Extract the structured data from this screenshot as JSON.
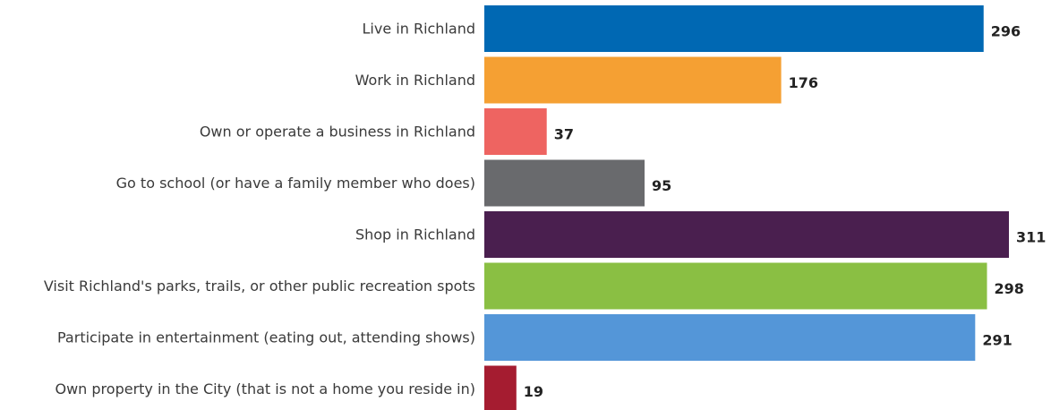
{
  "chart_data": {
    "type": "bar",
    "orientation": "horizontal",
    "categories": [
      "Live in Richland",
      "Work in Richland",
      "Own or operate a business in Richland",
      "Go to school (or have a family member who does)",
      "Shop in Richland",
      "Visit Richland's parks, trails, or other public recreation spots",
      "Participate in entertainment (eating out, attending shows)",
      "Own property in the City (that is not a home you reside in)"
    ],
    "values": [
      296,
      176,
      37,
      95,
      311,
      298,
      291,
      19
    ],
    "value_labels": [
      "296",
      "176",
      "37",
      "95",
      "311",
      "298",
      "291",
      "19"
    ],
    "colors": [
      "#0068b3",
      "#f5a033",
      "#ee6461",
      "#696a6d",
      "#4a1f4f",
      "#8abf43",
      "#5496d8",
      "#a51c30"
    ],
    "xlim": [
      0,
      311
    ],
    "grid": false
  }
}
